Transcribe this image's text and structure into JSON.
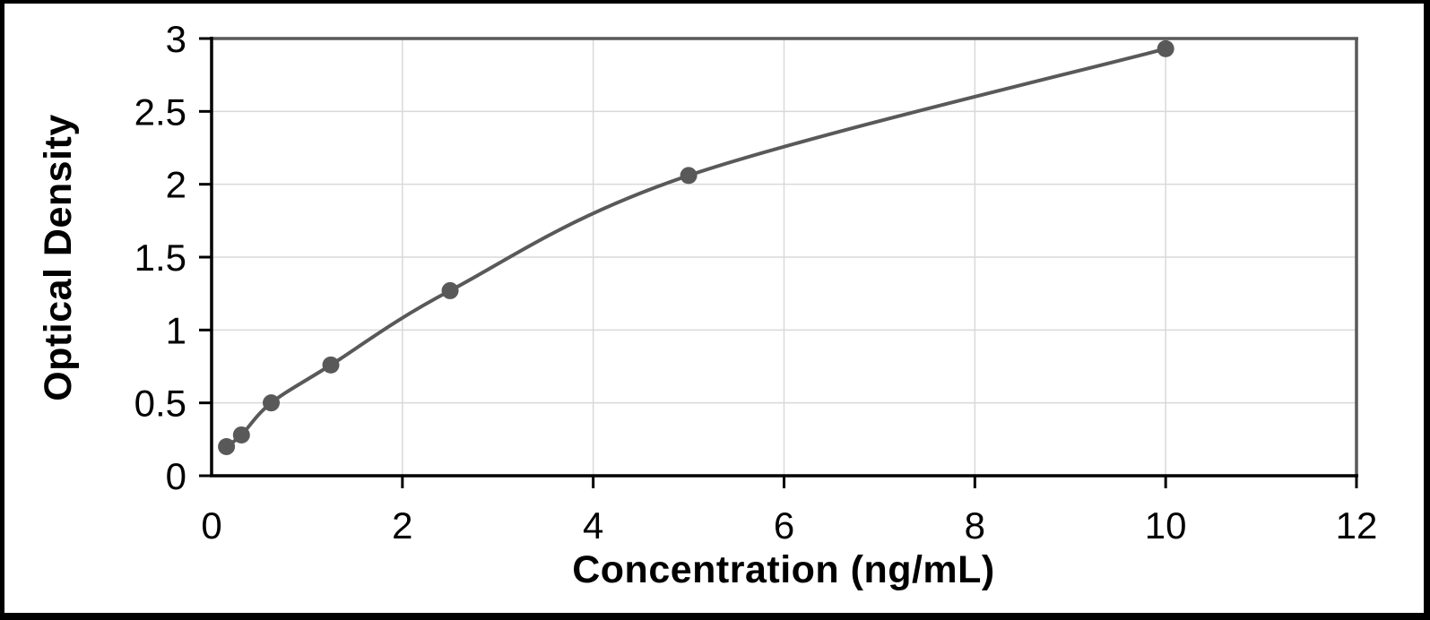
{
  "chart_data": {
    "type": "scatter",
    "subtype": "scatter-with-smooth-line",
    "title": "",
    "xlabel": "Concentration (ng/mL)",
    "ylabel": "Optical Density",
    "xlim": [
      0,
      12
    ],
    "ylim": [
      0,
      3
    ],
    "xticks": [
      0,
      2,
      4,
      6,
      8,
      10,
      12
    ],
    "yticks": [
      0,
      0.5,
      1,
      1.5,
      2,
      2.5,
      3
    ],
    "grid": true,
    "legend": false,
    "points": [
      {
        "x": 0.156,
        "y": 0.2
      },
      {
        "x": 0.313,
        "y": 0.28
      },
      {
        "x": 0.625,
        "y": 0.5
      },
      {
        "x": 1.25,
        "y": 0.76
      },
      {
        "x": 2.5,
        "y": 1.27
      },
      {
        "x": 5,
        "y": 2.06
      },
      {
        "x": 10,
        "y": 2.93
      }
    ],
    "colors": {
      "series": "#595959",
      "marker": "#595959",
      "gridline": "#d9d9d9",
      "axis": "#000000",
      "plot_border": "#595959",
      "background": "#ffffff",
      "frame": "#000000"
    }
  }
}
